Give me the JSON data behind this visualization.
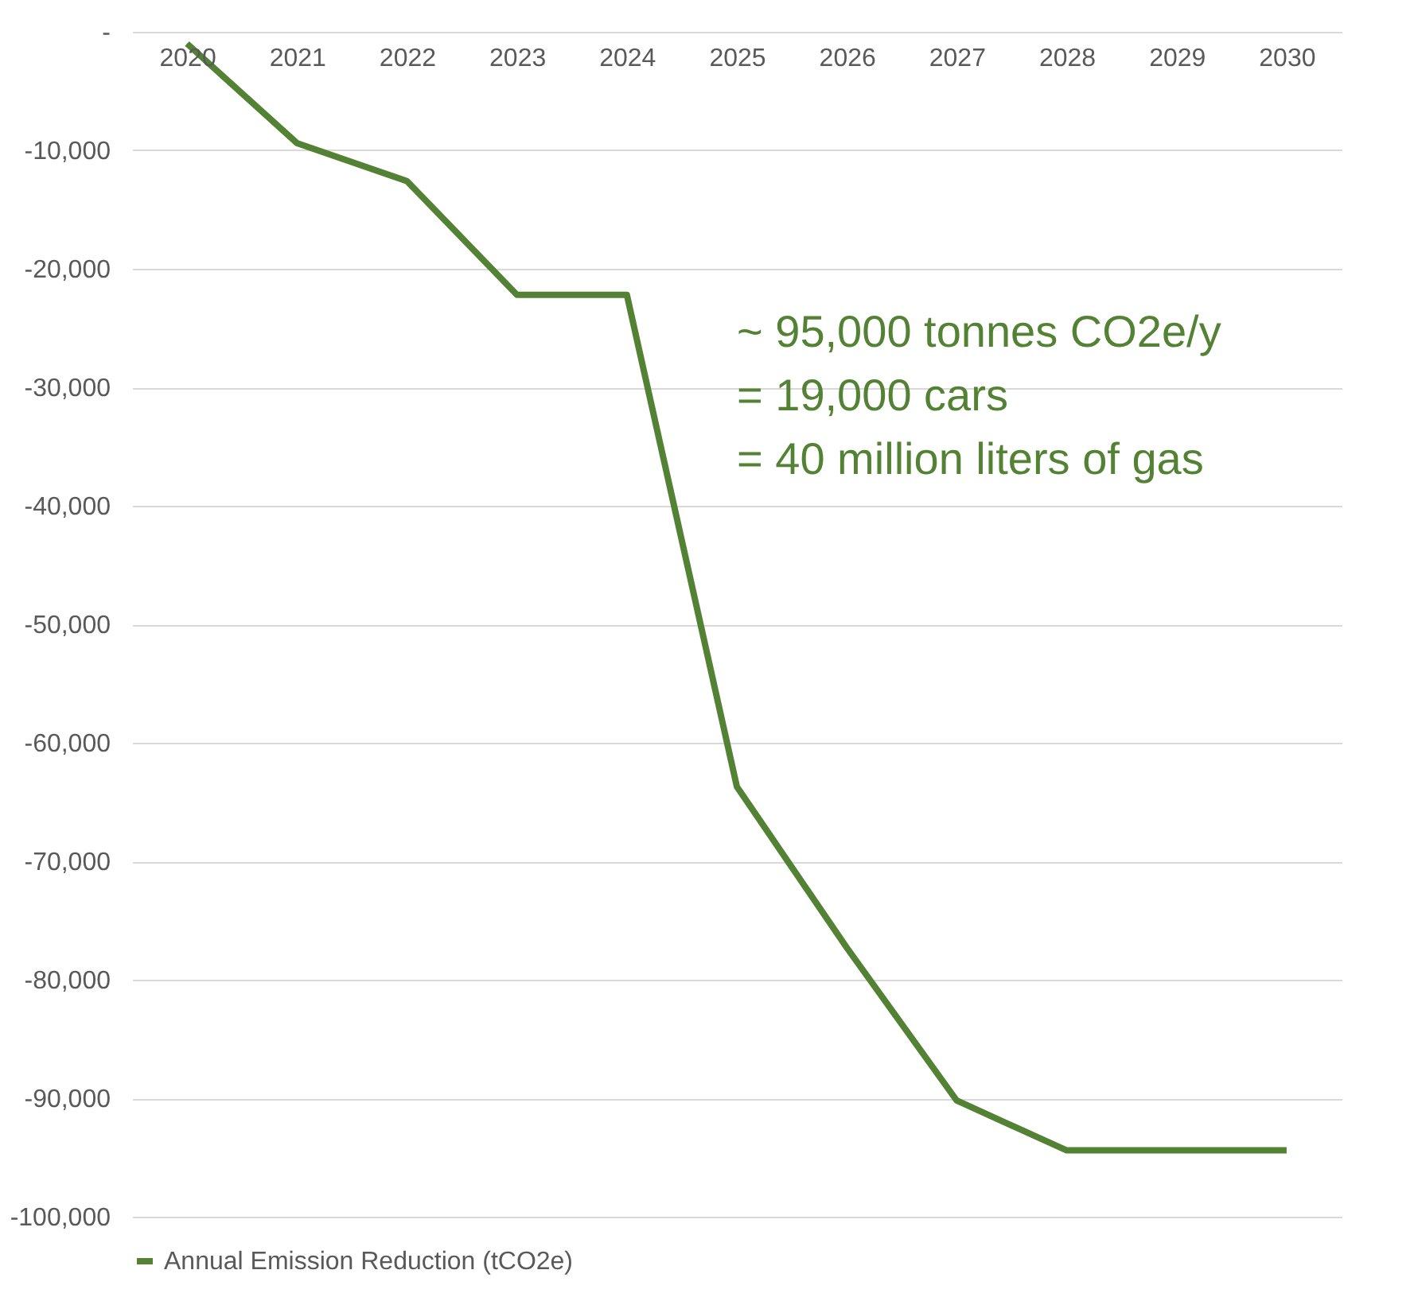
{
  "chart_data": {
    "type": "line",
    "categories": [
      "2020",
      "2021",
      "2022",
      "2023",
      "2024",
      "2025",
      "2026",
      "2027",
      "2028",
      "2029",
      "2030"
    ],
    "series": [
      {
        "name": "Annual Emission Reduction (tCO2e)",
        "color": "#548235",
        "values": [
          -1000,
          -9400,
          -12600,
          -22200,
          -22200,
          -63700,
          -77300,
          -90200,
          -94400,
          -94400,
          -94400
        ]
      }
    ],
    "ylim": [
      -100000,
      0
    ],
    "yticks": [
      {
        "value": 0,
        "label": "-"
      },
      {
        "value": -10000,
        "label": "-10,000"
      },
      {
        "value": -20000,
        "label": "-20,000"
      },
      {
        "value": -30000,
        "label": "-30,000"
      },
      {
        "value": -40000,
        "label": "-40,000"
      },
      {
        "value": -50000,
        "label": "-50,000"
      },
      {
        "value": -60000,
        "label": "-60,000"
      },
      {
        "value": -70000,
        "label": "-70,000"
      },
      {
        "value": -80000,
        "label": "-80,000"
      },
      {
        "value": -90000,
        "label": "-90,000"
      },
      {
        "value": -100000,
        "label": "-100,000"
      }
    ],
    "annotations": [
      "~ 95,000 tonnes CO2e/y",
      "  = 19,000 cars",
      "  = 40 million liters of gas"
    ],
    "grid": "y",
    "legend": "bottom",
    "marker": "none",
    "line_style": "solid"
  }
}
